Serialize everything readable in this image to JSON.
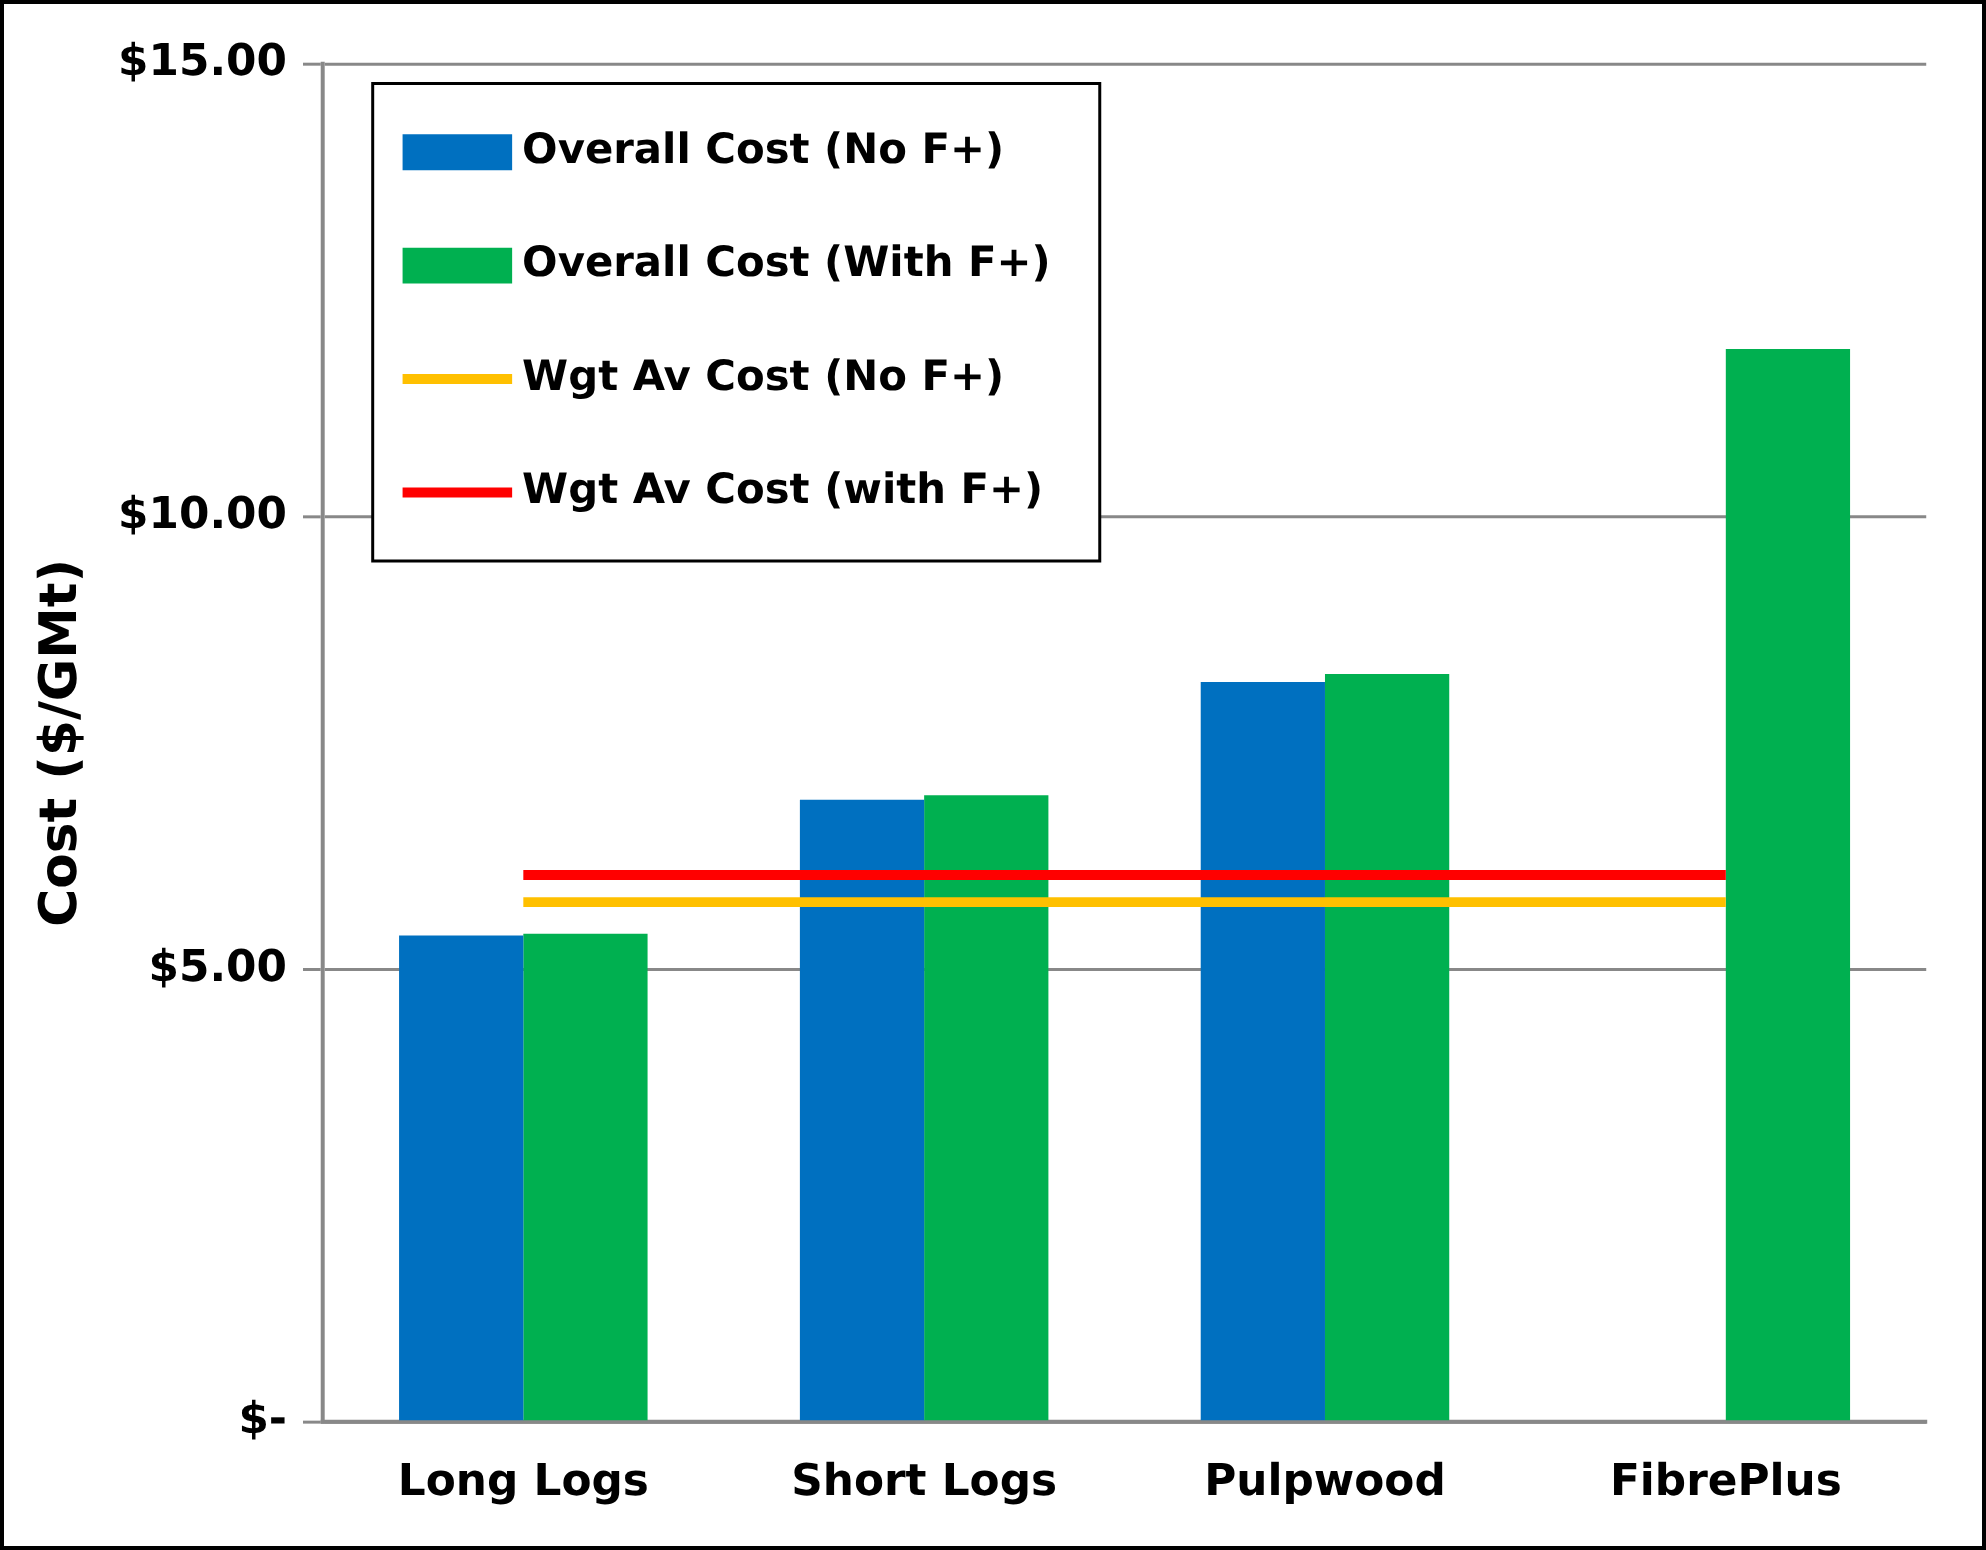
{
  "chart_data": {
    "type": "bar",
    "ylabel": "Cost ($/GMt)",
    "categories": [
      "Long Logs",
      "Short Logs",
      "Pulpwood",
      "FibrePlus"
    ],
    "series": [
      {
        "name": "Overall Cost (No F+)",
        "color": "#0070c0",
        "values": [
          5.37,
          6.87,
          8.17,
          null
        ]
      },
      {
        "name": "Overall Cost (With F+)",
        "color": "#00b050",
        "values": [
          5.39,
          6.92,
          8.26,
          11.85
        ]
      },
      {
        "name": "Wgt Av Cost (No F+)",
        "type": "line",
        "color": "#ffc000",
        "values": [
          5.74,
          5.74,
          5.74,
          5.74
        ]
      },
      {
        "name": "Wgt Av Cost (with F+)",
        "type": "line",
        "color": "#ff0000",
        "values": [
          6.04,
          6.04,
          6.04,
          6.04
        ]
      }
    ],
    "ylim": [
      0,
      15
    ],
    "yticks": [
      {
        "value": 0,
        "label": "$-"
      },
      {
        "value": 5,
        "label": "$5.00"
      },
      {
        "value": 10,
        "label": "$10.00"
      },
      {
        "value": 15,
        "label": "$15.00"
      }
    ],
    "grid": "y",
    "legend": "top left",
    "marker": "none",
    "line_style": "solid"
  }
}
